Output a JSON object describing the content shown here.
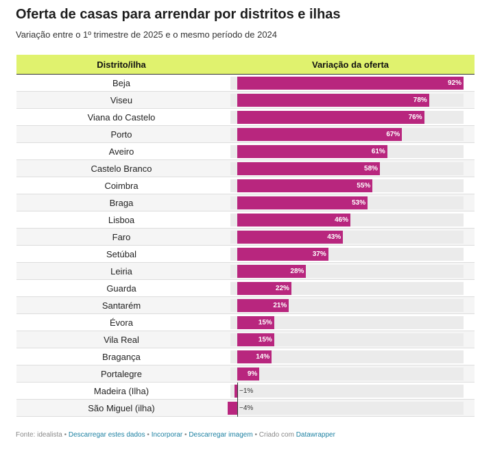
{
  "title": "Oferta de casas para arrendar por distritos e ilhas",
  "subtitle": "Variação entre o 1º trimestre de 2025 e o mesmo período de 2024",
  "colors": {
    "bar": "#b8267e",
    "header": "#e0f26e",
    "track": "#ebebeb",
    "link": "#1d81a2"
  },
  "footer": {
    "source": "Fonte: idealista",
    "sep": " • ",
    "link1": "Descarregar estes dados",
    "link2": "Incorporar",
    "link3": "Descarregar imagem",
    "credit": "Criado com",
    "link4": "Datawrapper"
  },
  "chart_data": {
    "type": "table",
    "columns": [
      "Distrito/ilha",
      "Variação da oferta"
    ],
    "unit": "%",
    "xlim": [
      -4,
      92
    ],
    "categories": [
      "Beja",
      "Viseu",
      "Viana do Castelo",
      "Porto",
      "Aveiro",
      "Castelo Branco",
      "Coimbra",
      "Braga",
      "Lisboa",
      "Faro",
      "Setúbal",
      "Leiria",
      "Guarda",
      "Santarém",
      "Évora",
      "Vila Real",
      "Bragança",
      "Portalegre",
      "Madeira (Ilha)",
      "São Miguel (ilha)"
    ],
    "values": [
      92,
      78,
      76,
      67,
      61,
      58,
      55,
      53,
      46,
      43,
      37,
      28,
      22,
      21,
      15,
      15,
      14,
      9,
      -1,
      -4
    ],
    "labels": [
      "92%",
      "78%",
      "76%",
      "67%",
      "61%",
      "58%",
      "55%",
      "53%",
      "46%",
      "43%",
      "37%",
      "28%",
      "22%",
      "21%",
      "15%",
      "15%",
      "14%",
      "9%",
      "−1%",
      "−4%"
    ]
  }
}
